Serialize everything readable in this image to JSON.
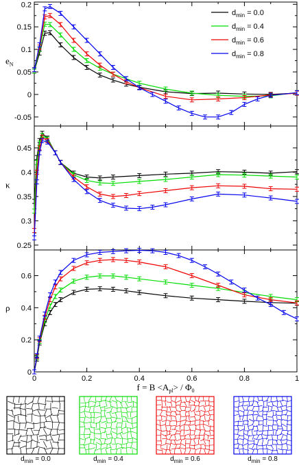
{
  "colors": {
    "d0.0": "#000000",
    "d0.4": "#00dd00",
    "d0.6": "#ee0000",
    "d0.8": "#0000ee"
  },
  "chart_data": [
    {
      "type": "line",
      "ylabel_main": "e",
      "ylabel_sub": "N",
      "xlim": [
        0,
        1
      ],
      "ylim": [
        -0.07,
        0.205
      ],
      "yticks": [
        "0.2",
        "0.15",
        "0.1",
        "0.05",
        "0",
        "-0.05"
      ],
      "ytick_values": [
        0.2,
        0.15,
        0.1,
        0.05,
        0,
        -0.05
      ],
      "legend_position": "top-right",
      "legend": [
        {
          "main": "d",
          "sub": "min",
          "rest": " = 0.0",
          "color_key": "d0.0"
        },
        {
          "main": "d",
          "sub": "min",
          "rest": " = 0.4",
          "color_key": "d0.4"
        },
        {
          "main": "d",
          "sub": "min",
          "rest": " = 0.6",
          "color_key": "d0.6"
        },
        {
          "main": "d",
          "sub": "min",
          "rest": " = 0.8",
          "color_key": "d0.8"
        }
      ],
      "series": [
        {
          "color_key": "d0.0",
          "x": [
            0,
            0.02,
            0.04,
            0.06,
            0.1,
            0.15,
            0.2,
            0.25,
            0.3,
            0.35,
            0.4,
            0.5,
            0.6,
            0.7,
            0.8,
            0.9,
            1.0
          ],
          "y": [
            0.052,
            0.092,
            0.136,
            0.137,
            0.11,
            0.082,
            0.06,
            0.043,
            0.032,
            0.023,
            0.016,
            0.006,
            0.002,
            0.003,
            0.001,
            0.0,
            0.003
          ]
        },
        {
          "color_key": "d0.4",
          "x": [
            0,
            0.02,
            0.04,
            0.06,
            0.1,
            0.15,
            0.2,
            0.25,
            0.3,
            0.35,
            0.4,
            0.5,
            0.6,
            0.7,
            0.8,
            0.9,
            1.0
          ],
          "y": [
            0.052,
            0.1,
            0.156,
            0.155,
            0.132,
            0.1,
            0.075,
            0.058,
            0.045,
            0.035,
            0.025,
            0.012,
            0.003,
            -0.002,
            -0.004,
            -0.003,
            0.004
          ]
        },
        {
          "color_key": "d0.6",
          "x": [
            0,
            0.02,
            0.04,
            0.06,
            0.1,
            0.15,
            0.2,
            0.25,
            0.3,
            0.35,
            0.4,
            0.5,
            0.6,
            0.7,
            0.8,
            0.9,
            1.0
          ],
          "y": [
            0.055,
            0.105,
            0.172,
            0.175,
            0.155,
            0.12,
            0.09,
            0.065,
            0.045,
            0.028,
            0.015,
            -0.004,
            -0.012,
            -0.01,
            -0.007,
            -0.001,
            0.003
          ]
        },
        {
          "color_key": "d0.8",
          "x": [
            0,
            0.02,
            0.04,
            0.06,
            0.1,
            0.15,
            0.2,
            0.25,
            0.3,
            0.35,
            0.4,
            0.45,
            0.5,
            0.55,
            0.6,
            0.65,
            0.7,
            0.75,
            0.8,
            0.85,
            0.9,
            1.0
          ],
          "y": [
            0.055,
            0.11,
            0.19,
            0.195,
            0.18,
            0.15,
            0.12,
            0.09,
            0.06,
            0.035,
            0.015,
            0.0,
            -0.015,
            -0.03,
            -0.042,
            -0.05,
            -0.05,
            -0.04,
            -0.022,
            -0.01,
            -0.002,
            0.004
          ]
        }
      ]
    },
    {
      "type": "line",
      "ylabel_main": "κ",
      "ylabel_sub": "",
      "xlim": [
        0,
        1
      ],
      "ylim": [
        0.24,
        0.495
      ],
      "yticks": [
        "0.45",
        "0.4",
        "0.35",
        "0.3",
        "0.25"
      ],
      "ytick_values": [
        0.45,
        0.4,
        0.35,
        0.3,
        0.25
      ],
      "series": [
        {
          "color_key": "d0.0",
          "x": [
            0,
            0.01,
            0.02,
            0.03,
            0.05,
            0.08,
            0.1,
            0.15,
            0.2,
            0.25,
            0.3,
            0.4,
            0.5,
            0.6,
            0.7,
            0.8,
            0.9,
            1.0
          ],
          "y": [
            0.34,
            0.43,
            0.465,
            0.48,
            0.47,
            0.44,
            0.42,
            0.398,
            0.39,
            0.388,
            0.39,
            0.393,
            0.396,
            0.398,
            0.401,
            0.4,
            0.398,
            0.401
          ]
        },
        {
          "color_key": "d0.4",
          "x": [
            0,
            0.01,
            0.02,
            0.03,
            0.05,
            0.08,
            0.1,
            0.15,
            0.2,
            0.25,
            0.3,
            0.4,
            0.5,
            0.6,
            0.7,
            0.8,
            0.9,
            1.0
          ],
          "y": [
            0.32,
            0.42,
            0.46,
            0.476,
            0.468,
            0.44,
            0.42,
            0.395,
            0.383,
            0.378,
            0.377,
            0.381,
            0.385,
            0.39,
            0.395,
            0.394,
            0.392,
            0.39
          ]
        },
        {
          "color_key": "d0.6",
          "x": [
            0,
            0.01,
            0.02,
            0.03,
            0.05,
            0.08,
            0.1,
            0.15,
            0.2,
            0.25,
            0.3,
            0.35,
            0.4,
            0.5,
            0.6,
            0.7,
            0.8,
            0.9,
            1.0
          ],
          "y": [
            0.28,
            0.4,
            0.45,
            0.472,
            0.465,
            0.44,
            0.42,
            0.39,
            0.37,
            0.355,
            0.35,
            0.352,
            0.356,
            0.362,
            0.368,
            0.372,
            0.371,
            0.366,
            0.365
          ]
        },
        {
          "color_key": "d0.8",
          "x": [
            0,
            0.01,
            0.02,
            0.03,
            0.05,
            0.08,
            0.1,
            0.15,
            0.2,
            0.25,
            0.3,
            0.35,
            0.4,
            0.45,
            0.5,
            0.6,
            0.7,
            0.8,
            0.9,
            1.0
          ],
          "y": [
            0.265,
            0.38,
            0.44,
            0.465,
            0.462,
            0.44,
            0.42,
            0.385,
            0.36,
            0.342,
            0.332,
            0.326,
            0.325,
            0.328,
            0.333,
            0.345,
            0.355,
            0.353,
            0.347,
            0.34
          ]
        }
      ]
    },
    {
      "type": "line",
      "ylabel_main": "ρ",
      "ylabel_sub": "",
      "xlabel": "f = B <A",
      "xlabel_sub": "pl",
      "xlabel_rest": "> / Φ",
      "xlabel_sub2": "0",
      "xlim": [
        0,
        1
      ],
      "ylim": [
        0,
        0.76
      ],
      "yticks": [
        "0.6",
        "0.4",
        "0.2",
        "0"
      ],
      "ytick_values": [
        0.6,
        0.4,
        0.2,
        0
      ],
      "xticks": [
        "0",
        "0.2",
        "0.4",
        "0.6",
        "0.8",
        "1"
      ],
      "xtick_values": [
        0,
        0.2,
        0.4,
        0.6,
        0.8,
        1
      ],
      "series": [
        {
          "color_key": "d0.0",
          "x": [
            0,
            0.01,
            0.02,
            0.04,
            0.06,
            0.08,
            0.1,
            0.15,
            0.2,
            0.25,
            0.3,
            0.35,
            0.4,
            0.5,
            0.6,
            0.7,
            0.8,
            0.9,
            1.0
          ],
          "y": [
            0.0,
            0.08,
            0.18,
            0.3,
            0.37,
            0.42,
            0.45,
            0.495,
            0.515,
            0.518,
            0.515,
            0.505,
            0.495,
            0.475,
            0.46,
            0.45,
            0.44,
            0.432,
            0.428
          ]
        },
        {
          "color_key": "d0.4",
          "x": [
            0,
            0.01,
            0.02,
            0.04,
            0.06,
            0.08,
            0.1,
            0.15,
            0.2,
            0.25,
            0.3,
            0.35,
            0.4,
            0.5,
            0.6,
            0.7,
            0.8,
            0.9,
            1.0
          ],
          "y": [
            0.0,
            0.09,
            0.19,
            0.32,
            0.41,
            0.47,
            0.51,
            0.565,
            0.59,
            0.598,
            0.598,
            0.59,
            0.58,
            0.56,
            0.54,
            0.52,
            0.495,
            0.47,
            0.45
          ]
        },
        {
          "color_key": "d0.6",
          "x": [
            0,
            0.01,
            0.02,
            0.04,
            0.06,
            0.08,
            0.1,
            0.15,
            0.2,
            0.25,
            0.3,
            0.35,
            0.4,
            0.5,
            0.6,
            0.7,
            0.8,
            0.9,
            1.0
          ],
          "y": [
            0.0,
            0.095,
            0.2,
            0.34,
            0.45,
            0.53,
            0.58,
            0.645,
            0.68,
            0.695,
            0.7,
            0.695,
            0.685,
            0.655,
            0.6,
            0.54,
            0.48,
            0.45,
            0.43
          ]
        },
        {
          "color_key": "d0.8",
          "x": [
            0,
            0.01,
            0.02,
            0.04,
            0.06,
            0.08,
            0.1,
            0.15,
            0.2,
            0.25,
            0.3,
            0.35,
            0.4,
            0.45,
            0.5,
            0.55,
            0.6,
            0.65,
            0.7,
            0.75,
            0.8,
            0.85,
            0.9,
            0.95,
            1.0
          ],
          "y": [
            0.0,
            0.1,
            0.21,
            0.36,
            0.48,
            0.56,
            0.62,
            0.695,
            0.73,
            0.745,
            0.75,
            0.755,
            0.758,
            0.755,
            0.745,
            0.725,
            0.695,
            0.655,
            0.61,
            0.56,
            0.51,
            0.46,
            0.42,
            0.37,
            0.33
          ]
        }
      ]
    }
  ],
  "panels": [
    {
      "main": "d",
      "sub": "min",
      "rest": " = 0.0",
      "color_key": "d0.0"
    },
    {
      "main": "d",
      "sub": "min",
      "rest": " = 0.4",
      "color_key": "d0.4"
    },
    {
      "main": "d",
      "sub": "min",
      "rest": " = 0.6",
      "color_key": "d0.6"
    },
    {
      "main": "d",
      "sub": "min",
      "rest": " = 0.8",
      "color_key": "d0.8"
    }
  ]
}
